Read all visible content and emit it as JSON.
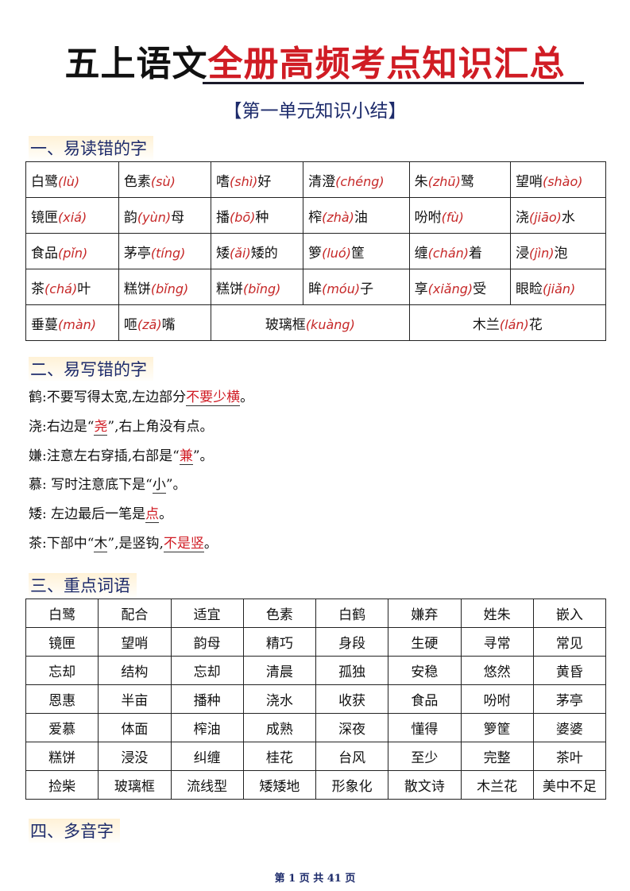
{
  "title": {
    "black": "五上语文",
    "red": "全册高频考点知识汇总"
  },
  "subtitle": "【第一单元知识小结】",
  "section1": {
    "heading": "一、易读错的字",
    "rows": [
      [
        {
          "pre": "白鹭",
          "py": "(lù)",
          "post": ""
        },
        {
          "pre": "色素",
          "py": "(sù)",
          "post": ""
        },
        {
          "pre": "嗜",
          "py": "(shì)",
          "post": "好"
        },
        {
          "pre": "清澄",
          "py": "(chéng)",
          "post": ""
        },
        {
          "pre": "朱",
          "py": "(zhū)",
          "post": "鹭"
        },
        {
          "pre": "望哨",
          "py": "(shào)",
          "post": ""
        }
      ],
      [
        {
          "pre": "镜匣",
          "py": "(xiá)",
          "post": ""
        },
        {
          "pre": "韵",
          "py": "(yùn)",
          "post": "母"
        },
        {
          "pre": "播",
          "py": "(bō)",
          "post": "种"
        },
        {
          "pre": "榨",
          "py": "(zhà)",
          "post": "油"
        },
        {
          "pre": "吩咐",
          "py": "(fù)",
          "post": ""
        },
        {
          "pre": "浇",
          "py": "(jiāo)",
          "post": "水"
        }
      ],
      [
        {
          "pre": "食品",
          "py": "(pǐn)",
          "post": ""
        },
        {
          "pre": "茅亭",
          "py": "(tíng)",
          "post": ""
        },
        {
          "pre": "矮",
          "py": "(ǎi)",
          "post": "矮的"
        },
        {
          "pre": "箩",
          "py": "(luó)",
          "post": "筐"
        },
        {
          "pre": "缠",
          "py": "(chán)",
          "post": "着"
        },
        {
          "pre": "浸",
          "py": "(jìn)",
          "post": "泡"
        }
      ],
      [
        {
          "pre": "茶",
          "py": "(chá)",
          "post": "叶"
        },
        {
          "pre": "糕饼",
          "py": "(bǐng)",
          "post": ""
        },
        {
          "pre": "糕饼",
          "py": "(bǐng)",
          "post": ""
        },
        {
          "pre": "眸",
          "py": "(móu)",
          "post": "子"
        },
        {
          "pre": "享",
          "py": "(xiǎng)",
          "post": "受"
        },
        {
          "pre": "眼睑",
          "py": "(jiǎn)",
          "post": ""
        }
      ],
      [
        {
          "pre": "垂蔓",
          "py": "(màn)",
          "post": ""
        },
        {
          "pre": "咂",
          "py": "(zā)",
          "post": "嘴"
        },
        {
          "pre": "玻璃框",
          "py": "(kuàng)",
          "post": "",
          "span": 2
        },
        {
          "pre": "木兰",
          "py": "(lán)",
          "post": "花",
          "span": 2
        }
      ]
    ]
  },
  "section2": {
    "heading": "二、易写错的字",
    "lines": [
      [
        {
          "t": "鹤:不要写得太宽,左边部分"
        },
        {
          "t": "不要少横",
          "red": true
        },
        {
          "t": "。"
        }
      ],
      [
        {
          "t": "浇:右边是“"
        },
        {
          "t": "尧",
          "red": true
        },
        {
          "t": "”,右上角没有点。"
        }
      ],
      [
        {
          "t": "嫌:注意左右穿插,右部是“"
        },
        {
          "t": "兼",
          "red": true
        },
        {
          "t": "”。"
        }
      ],
      [
        {
          "t": "慕: 写时注意底下是“"
        },
        {
          "t": "小",
          "red": false,
          "ul": true
        },
        {
          "t": "”。"
        }
      ],
      [
        {
          "t": "矮: 左边最后一笔是"
        },
        {
          "t": "点",
          "red": true
        },
        {
          "t": "。"
        }
      ],
      [
        {
          "t": "茶:下部中“"
        },
        {
          "t": "木",
          "red": false,
          "ul": true
        },
        {
          "t": "”,是竖钩,"
        },
        {
          "t": "不是竖",
          "red": true
        },
        {
          "t": "。"
        }
      ]
    ]
  },
  "section3": {
    "heading": "三、重点词语",
    "rows": [
      [
        "白鹭",
        "配合",
        "适宜",
        "色素",
        "白鹤",
        "嫌弃",
        "姓朱",
        "嵌入"
      ],
      [
        "镜匣",
        "望哨",
        "韵母",
        "精巧",
        "身段",
        "生硬",
        "寻常",
        "常见"
      ],
      [
        "忘却",
        "结构",
        "忘却",
        "清晨",
        "孤独",
        "安稳",
        "悠然",
        "黄昏"
      ],
      [
        "恩惠",
        "半亩",
        "播种",
        "浇水",
        "收获",
        "食品",
        "吩咐",
        "茅亭"
      ],
      [
        "爱慕",
        "体面",
        "榨油",
        "成熟",
        "深夜",
        "懂得",
        "箩筐",
        "婆婆"
      ],
      [
        "糕饼",
        "浸没",
        "纠缠",
        "桂花",
        "台风",
        "至少",
        "完整",
        "茶叶"
      ],
      [
        "捡柴",
        "玻璃框",
        "流线型",
        "矮矮地",
        "形象化",
        "散文诗",
        "木兰花",
        "美中不足"
      ]
    ]
  },
  "section4": {
    "heading": "四、多音字"
  },
  "footer": "第 1 页 共 41 页",
  "colors": {
    "accent_red": "#d01c24",
    "heading_blue": "#1d2b6b"
  }
}
